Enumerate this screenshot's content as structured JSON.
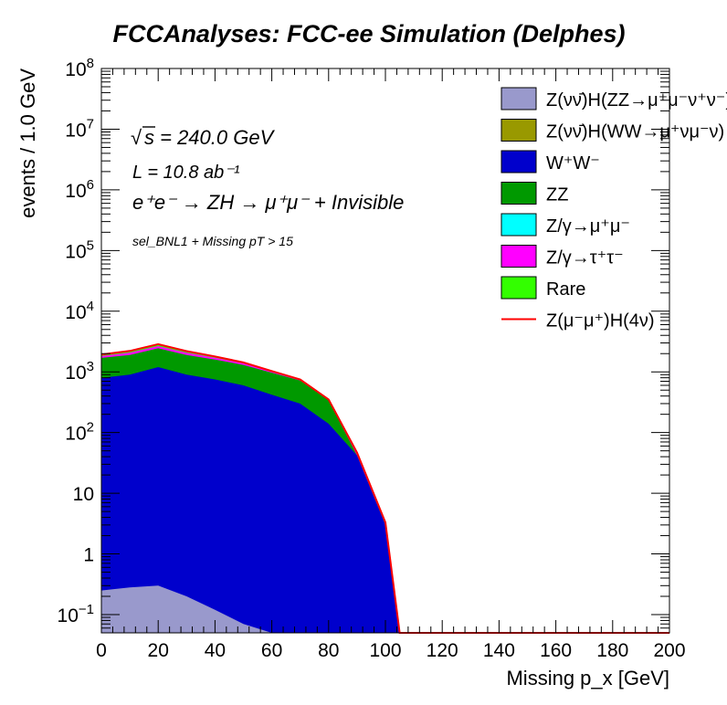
{
  "chart_data": {
    "type": "area",
    "title": "FCCAnalyses: FCC-ee Simulation (Delphes)",
    "xlabel": "Missing p_x [GeV]",
    "ylabel": "events / 1.0 GeV",
    "xlim": [
      0,
      200
    ],
    "ylim": [
      0.05,
      100000000
    ],
    "yscale": "log",
    "stacked": true,
    "grid": false,
    "legend_position": "top-right",
    "x_ticks": [
      "0",
      "20",
      "40",
      "60",
      "80",
      "100",
      "120",
      "140",
      "160",
      "180",
      "200"
    ],
    "y_ticks": [
      {
        "value": 0.1,
        "base": "10",
        "exp": "−1"
      },
      {
        "value": 1,
        "base": "1",
        "exp": ""
      },
      {
        "value": 10,
        "base": "10",
        "exp": ""
      },
      {
        "value": 100,
        "base": "10",
        "exp": "2"
      },
      {
        "value": 1000,
        "base": "10",
        "exp": "3"
      },
      {
        "value": 10000,
        "base": "10",
        "exp": "4"
      },
      {
        "value": 100000,
        "base": "10",
        "exp": "5"
      },
      {
        "value": 1000000,
        "base": "10",
        "exp": "6"
      },
      {
        "value": 10000000,
        "base": "10",
        "exp": "7"
      },
      {
        "value": 100000000,
        "base": "10",
        "exp": "8"
      }
    ],
    "annotations": {
      "sqrt_s": "s = 240.0 GeV",
      "lumi": "L = 10.8 ab⁻¹",
      "process": "e⁺e⁻ → ZH → μ⁺μ⁻ + Invisible",
      "selection": "sel_BNL1 + Missing pT > 15"
    },
    "x": [
      0,
      10,
      20,
      30,
      40,
      50,
      60,
      70,
      80,
      90,
      100,
      105
    ],
    "series": [
      {
        "name": "Z(νν̄)H(ZZ→μ⁺μ⁻ν⁺ν⁻)",
        "color": "#9999cc",
        "values": [
          0.25,
          0.28,
          0.3,
          0.2,
          0.12,
          0.07,
          0,
          0,
          0,
          0,
          0,
          0
        ]
      },
      {
        "name": "Z(νν̄)H(WW→μ⁺νμ⁻ν)",
        "color": "#999900",
        "values": [
          0,
          0,
          0,
          0,
          0,
          0,
          0,
          0,
          0,
          0,
          0,
          0
        ]
      },
      {
        "name": "W⁺W⁻",
        "color": "#0000cc",
        "values": [
          800,
          900,
          1200,
          900,
          750,
          600,
          420,
          300,
          140,
          42,
          3.0,
          0
        ]
      },
      {
        "name": "ZZ",
        "color": "#009900",
        "values": [
          900,
          1000,
          1250,
          1000,
          850,
          700,
          550,
          420,
          200,
          0,
          0,
          0
        ]
      },
      {
        "name": "Z/γ→μ⁺μ⁻",
        "color": "#00ffff",
        "values": [
          0,
          0,
          0,
          0,
          0,
          0,
          0,
          0,
          0,
          0,
          0,
          0
        ]
      },
      {
        "name": "Z/γ→τ⁺τ⁻",
        "color": "#ff00ff",
        "values": [
          120,
          180,
          210,
          165,
          110,
          80,
          38,
          19,
          7,
          3.3,
          0,
          0
        ]
      },
      {
        "name": "Rare",
        "color": "#33ff00",
        "values": [
          110,
          135,
          200,
          130,
          85,
          50,
          25,
          12,
          5,
          1.5,
          0.3,
          0
        ]
      },
      {
        "name": "Z(μ⁻μ⁺)H(4ν)",
        "color": "#ff0000",
        "style": "line",
        "values": [
          1930,
          2215,
          2860,
          2195,
          1795,
          1430,
          1033,
          751,
          352,
          46.8,
          3.3,
          0
        ]
      }
    ]
  }
}
